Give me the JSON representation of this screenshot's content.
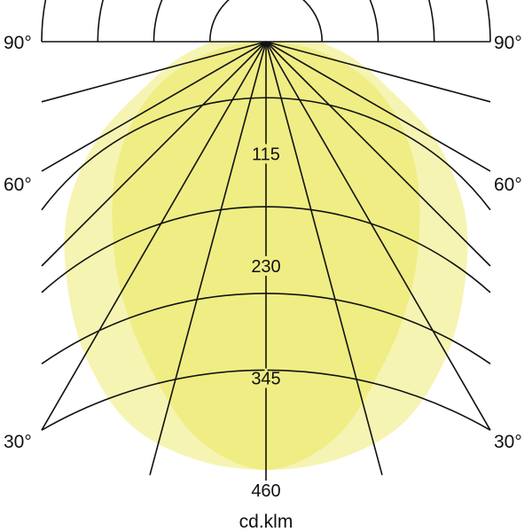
{
  "chart_data": {
    "type": "polar",
    "unit_label": "cd.klm",
    "angle_labels": [
      "90°",
      "60°",
      "30°"
    ],
    "angle_step_deg": 15,
    "angle_range_deg": [
      -90,
      90
    ],
    "ring_step": 57.5,
    "rlim": [
      0,
      460
    ],
    "ring_labels": [
      "115",
      "230",
      "345",
      "460"
    ],
    "angles_deg": [
      0,
      10,
      20,
      30,
      40,
      50,
      60,
      70,
      80,
      90
    ],
    "series": [
      {
        "color": "#f6f4b2",
        "values": [
          439,
          434,
          415,
          371,
          318,
          265,
          200,
          130,
          88,
          55
        ]
      },
      {
        "color": "#efed84",
        "values": [
          439,
          412,
          352,
          297,
          245,
          200,
          155,
          108,
          55,
          10
        ]
      }
    ],
    "symmetric": true,
    "grid": true
  }
}
